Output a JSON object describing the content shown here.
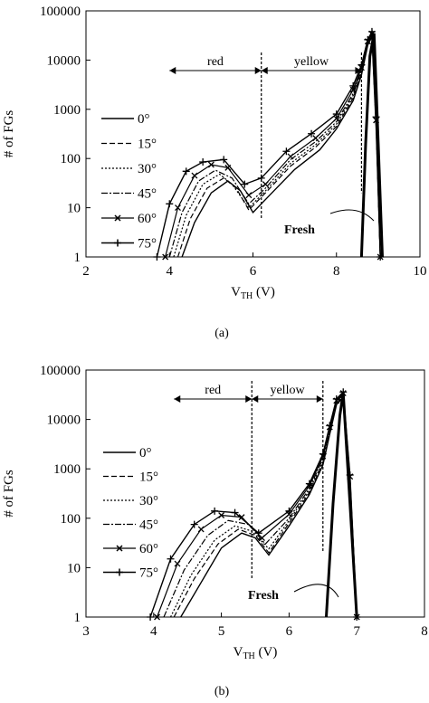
{
  "figure": {
    "panels": [
      {
        "caption": "(a)",
        "xlabel_main": "V",
        "xlabel_sub": "TH",
        "xlabel_unit": " (V)",
        "ylabel": "# of FGs",
        "xtick_labels": [
          "2",
          "4",
          "6",
          "8",
          "10"
        ],
        "ytick_labels": [
          "1",
          "10",
          "100",
          "1000",
          "10000",
          "100000"
        ],
        "region_labels": [
          "red",
          "yellow"
        ],
        "fresh_label": "Fresh",
        "legend": [
          "0°",
          "15°",
          "30°",
          "45°",
          "60°",
          "75°"
        ]
      },
      {
        "caption": "(b)",
        "xlabel_main": "V",
        "xlabel_sub": "TH",
        "xlabel_unit": " (V)",
        "ylabel": "# of FGs",
        "xtick_labels": [
          "3",
          "4",
          "5",
          "6",
          "7",
          "8"
        ],
        "ytick_labels": [
          "1",
          "10",
          "100",
          "1000",
          "10000",
          "100000"
        ],
        "region_labels": [
          "red",
          "yellow"
        ],
        "fresh_label": "Fresh",
        "legend": [
          "0°",
          "15°",
          "30°",
          "45°",
          "60°",
          "75°"
        ]
      }
    ]
  },
  "chart_data": [
    {
      "type": "line",
      "caption": "(a)",
      "xlabel": "VTH (V)",
      "ylabel": "# of FGs",
      "xlim": [
        2,
        10
      ],
      "ylim": [
        1,
        100000
      ],
      "yscale": "log",
      "grid": false,
      "legend_position": "left",
      "boundaries": [
        6.2,
        8.6
      ],
      "regions": [
        {
          "label": "red",
          "from": 4.0,
          "to": 6.2
        },
        {
          "label": "yellow",
          "from": 6.2,
          "to": 8.6
        }
      ],
      "fresh": {
        "label": "Fresh",
        "x": [
          8.6,
          8.7,
          8.8,
          8.9,
          9.0,
          9.1
        ],
        "y": [
          1,
          200,
          12000,
          35000,
          200,
          1
        ]
      },
      "series": [
        {
          "name": "0°",
          "x": [
            4.3,
            4.6,
            5.0,
            5.4,
            5.7,
            6.0,
            6.4,
            7.0,
            7.6,
            8.0,
            8.4,
            8.6,
            8.75,
            8.85,
            8.95,
            9.05
          ],
          "y": [
            1,
            5,
            20,
            35,
            22,
            8,
            18,
            60,
            150,
            400,
            1500,
            5000,
            20000,
            30000,
            400,
            1
          ]
        },
        {
          "name": "15°",
          "x": [
            4.2,
            4.5,
            4.9,
            5.3,
            5.6,
            5.9,
            6.3,
            6.9,
            7.5,
            8.0,
            8.4,
            8.6,
            8.75,
            8.85,
            8.95,
            9.05
          ],
          "y": [
            1,
            6,
            25,
            40,
            25,
            9,
            20,
            70,
            170,
            450,
            1700,
            5500,
            21000,
            31000,
            450,
            1
          ]
        },
        {
          "name": "30°",
          "x": [
            4.1,
            4.4,
            4.8,
            5.2,
            5.5,
            5.9,
            6.3,
            6.9,
            7.5,
            8.0,
            8.4,
            8.6,
            8.75,
            8.85,
            8.95,
            9.05
          ],
          "y": [
            1,
            7,
            30,
            48,
            30,
            10,
            22,
            80,
            190,
            500,
            1900,
            6000,
            22000,
            32000,
            500,
            1
          ]
        },
        {
          "name": "45°",
          "x": [
            4.0,
            4.3,
            4.7,
            5.1,
            5.5,
            5.9,
            6.3,
            6.9,
            7.5,
            8.0,
            8.4,
            8.6,
            8.75,
            8.85,
            8.95,
            9.05
          ],
          "y": [
            1,
            8,
            35,
            58,
            40,
            12,
            25,
            95,
            220,
            560,
            2100,
            6500,
            23000,
            33000,
            550,
            1
          ]
        },
        {
          "name": "60°",
          "x": [
            3.9,
            4.2,
            4.6,
            5.0,
            5.4,
            5.9,
            6.3,
            6.9,
            7.5,
            8.0,
            8.4,
            8.6,
            8.75,
            8.85,
            8.95,
            9.05
          ],
          "y": [
            1,
            10,
            45,
            75,
            65,
            18,
            30,
            110,
            260,
            650,
            2500,
            7000,
            24000,
            34000,
            600,
            1
          ]
        },
        {
          "name": "75°",
          "x": [
            3.7,
            4.0,
            4.4,
            4.8,
            5.3,
            5.8,
            6.2,
            6.8,
            7.4,
            8.0,
            8.4,
            8.6,
            8.75,
            8.85,
            8.95,
            9.05
          ],
          "y": [
            1,
            12,
            55,
            85,
            95,
            30,
            40,
            140,
            320,
            800,
            3000,
            8000,
            26000,
            38000,
            700,
            1
          ]
        }
      ]
    },
    {
      "type": "line",
      "caption": "(b)",
      "xlabel": "VTH (V)",
      "ylabel": "# of FGs",
      "xlim": [
        3,
        8
      ],
      "ylim": [
        1,
        100000
      ],
      "yscale": "log",
      "grid": false,
      "legend_position": "left",
      "boundaries": [
        5.45,
        6.5
      ],
      "regions": [
        {
          "label": "red",
          "from": 4.3,
          "to": 5.45
        },
        {
          "label": "yellow",
          "from": 5.45,
          "to": 6.5
        }
      ],
      "fresh": {
        "label": "Fresh",
        "x": [
          6.55,
          6.65,
          6.75,
          6.8,
          6.9,
          7.0
        ],
        "y": [
          1,
          200,
          12000,
          35000,
          200,
          1
        ]
      },
      "series": [
        {
          "name": "0°",
          "x": [
            4.4,
            4.7,
            5.0,
            5.3,
            5.5,
            5.7,
            6.0,
            6.3,
            6.5,
            6.6,
            6.7,
            6.8,
            6.9,
            7.0
          ],
          "y": [
            1,
            5,
            25,
            50,
            40,
            18,
            70,
            300,
            1200,
            5000,
            20000,
            28000,
            500,
            1
          ]
        },
        {
          "name": "15°",
          "x": [
            4.3,
            4.6,
            4.95,
            5.25,
            5.5,
            5.7,
            6.0,
            6.3,
            6.5,
            6.6,
            6.7,
            6.8,
            6.9,
            7.0
          ],
          "y": [
            1,
            6,
            30,
            60,
            45,
            20,
            80,
            330,
            1300,
            5500,
            21000,
            29000,
            550,
            1
          ]
        },
        {
          "name": "30°",
          "x": [
            4.25,
            4.55,
            4.9,
            5.2,
            5.45,
            5.7,
            6.0,
            6.3,
            6.5,
            6.6,
            6.7,
            6.8,
            6.9,
            7.0
          ],
          "y": [
            1,
            7,
            36,
            70,
            55,
            24,
            90,
            360,
            1400,
            6000,
            22000,
            30000,
            600,
            1
          ]
        },
        {
          "name": "45°",
          "x": [
            4.15,
            4.45,
            4.8,
            5.1,
            5.4,
            5.65,
            6.0,
            6.3,
            6.5,
            6.6,
            6.7,
            6.8,
            6.9,
            7.0
          ],
          "y": [
            1,
            9,
            45,
            90,
            75,
            30,
            100,
            400,
            1600,
            6500,
            23000,
            32000,
            650,
            1
          ]
        },
        {
          "name": "60°",
          "x": [
            4.05,
            4.35,
            4.7,
            5.0,
            5.3,
            5.6,
            6.0,
            6.3,
            6.5,
            6.6,
            6.7,
            6.8,
            6.9,
            7.0
          ],
          "y": [
            1,
            12,
            60,
            115,
            105,
            40,
            120,
            450,
            1800,
            7000,
            24000,
            34000,
            700,
            1
          ]
        },
        {
          "name": "75°",
          "x": [
            3.95,
            4.25,
            4.6,
            4.9,
            5.2,
            5.55,
            6.0,
            6.3,
            6.5,
            6.6,
            6.7,
            6.8,
            6.9,
            7.0
          ],
          "y": [
            1,
            15,
            75,
            140,
            130,
            50,
            140,
            500,
            2000,
            7500,
            26000,
            36000,
            750,
            1
          ]
        }
      ]
    }
  ]
}
